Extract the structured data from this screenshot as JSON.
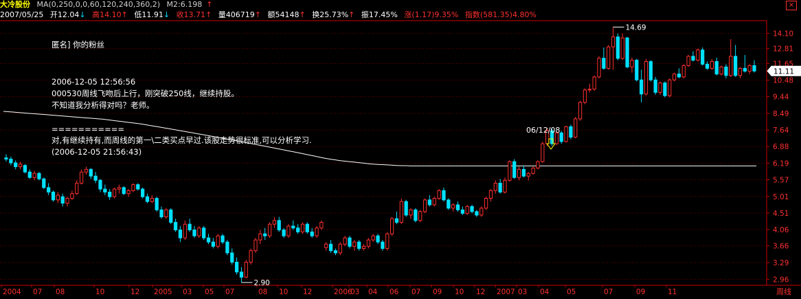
{
  "header": {
    "title": "大冷股份",
    "ma_params": "MA(0,250,0,0,60,120,240,360,2)",
    "m2": "M2:6.198",
    "date": "2007/05/25",
    "open": "开12.04",
    "high": "高14.10",
    "low": "低11.91",
    "close": "收13.71",
    "volume": "量406719",
    "amount": "额54148",
    "turnover": "换25.73%",
    "amplitude": "振17.45%",
    "change": "涨(1.17)9.35%",
    "index": "指数(581.35)4.80%"
  },
  "post": {
    "author": "匿名] 你的粉丝",
    "time": "2006-12-05 12:56:56",
    "line1": "000530周线飞吻后上行，刚突破250线，继续持股。",
    "line2": "不知道我分析得对吗？老师。",
    "separator": "===========",
    "reply1": "对,有继续持有,而周线的第一\\二类买点早过.该股走势很标准,可以分析学习.",
    "reply2": "(2006-12-05 21:56:43)"
  },
  "chart_data": {
    "type": "candlestick",
    "title": "大冷股份",
    "period": "周线",
    "y_ticks": [
      14.1,
      12.81,
      11.65,
      10.48,
      9.44,
      8.49,
      7.64,
      6.88,
      6.19,
      5.57,
      5.01,
      4.51,
      4.06,
      3.66,
      3.29,
      2.96
    ],
    "x_labels": [
      "2004",
      "07",
      "08",
      "10",
      "12",
      "2005",
      "03",
      "05",
      "07",
      "08",
      "10",
      "12",
      "2006",
      "03",
      "04",
      "06",
      "07",
      "09",
      "10",
      "12",
      "2007",
      "03",
      "04",
      "05",
      "07",
      "09",
      "11"
    ],
    "y_range": [
      2.85,
      15.3
    ],
    "y_scale": "log",
    "current_price_label": "11.11",
    "max_label": "14.69",
    "min_label": "2.90",
    "annotation": "06/12/08",
    "colors": {
      "up": "#ff3030",
      "down": "#00e0ff",
      "ma": "#ffffff",
      "grid": "#7a0000",
      "axis": "#cc0000",
      "text": "#ff3030"
    },
    "candles": [
      [
        6.4,
        6.55,
        6.25,
        6.35
      ],
      [
        6.35,
        6.45,
        6.1,
        6.2
      ],
      [
        6.2,
        6.3,
        5.95,
        6.05
      ],
      [
        6.05,
        6.25,
        5.95,
        6.15
      ],
      [
        6.1,
        6.15,
        5.8,
        5.85
      ],
      [
        5.85,
        5.95,
        5.6,
        5.65
      ],
      [
        5.65,
        5.9,
        5.55,
        5.8
      ],
      [
        5.8,
        5.85,
        5.55,
        5.6
      ],
      [
        5.6,
        5.65,
        5.25,
        5.3
      ],
      [
        5.3,
        5.45,
        5.05,
        5.15
      ],
      [
        5.15,
        5.2,
        4.85,
        4.9
      ],
      [
        4.9,
        5.15,
        4.8,
        5.05
      ],
      [
        5.0,
        5.1,
        4.7,
        4.8
      ],
      [
        4.8,
        5.0,
        4.7,
        4.95
      ],
      [
        4.95,
        5.2,
        4.9,
        5.1
      ],
      [
        5.1,
        5.55,
        5.05,
        5.45
      ],
      [
        5.45,
        5.95,
        5.4,
        5.85
      ],
      [
        5.85,
        6.05,
        5.75,
        5.95
      ],
      [
        5.95,
        6.0,
        5.6,
        5.7
      ],
      [
        5.7,
        5.85,
        5.45,
        5.55
      ],
      [
        5.55,
        5.6,
        5.15,
        5.25
      ],
      [
        5.25,
        5.4,
        5.05,
        5.15
      ],
      [
        5.15,
        5.25,
        4.9,
        5.0
      ],
      [
        5.0,
        5.3,
        4.95,
        5.25
      ],
      [
        5.25,
        5.4,
        5.1,
        5.3
      ],
      [
        5.3,
        5.35,
        5.05,
        5.1
      ],
      [
        5.1,
        5.25,
        5.0,
        5.2
      ],
      [
        5.2,
        5.45,
        5.15,
        5.4
      ],
      [
        5.4,
        5.45,
        5.2,
        5.25
      ],
      [
        5.25,
        5.3,
        4.95,
        5.0
      ],
      [
        5.0,
        5.1,
        4.8,
        4.85
      ],
      [
        4.85,
        5.05,
        4.8,
        4.95
      ],
      [
        4.95,
        5.0,
        4.55,
        4.6
      ],
      [
        4.6,
        4.7,
        4.35,
        4.4
      ],
      [
        4.4,
        4.65,
        4.35,
        4.6
      ],
      [
        4.6,
        4.65,
        4.2,
        4.25
      ],
      [
        4.25,
        4.35,
        4.0,
        4.05
      ],
      [
        4.05,
        4.15,
        3.75,
        3.85
      ],
      [
        3.85,
        4.3,
        3.8,
        4.2
      ],
      [
        4.2,
        4.35,
        4.0,
        4.05
      ],
      [
        4.05,
        4.15,
        3.85,
        3.9
      ],
      [
        3.9,
        4.15,
        3.85,
        4.1
      ],
      [
        4.1,
        4.15,
        3.8,
        3.85
      ],
      [
        3.85,
        3.95,
        3.7,
        3.75
      ],
      [
        3.75,
        3.85,
        3.6,
        3.65
      ],
      [
        3.65,
        3.95,
        3.6,
        3.9
      ],
      [
        3.9,
        3.95,
        3.7,
        3.75
      ],
      [
        3.75,
        3.8,
        3.45,
        3.5
      ],
      [
        3.5,
        3.6,
        3.25,
        3.3
      ],
      [
        3.3,
        3.4,
        3.05,
        3.1
      ],
      [
        3.1,
        3.2,
        2.9,
        3.0
      ],
      [
        3.0,
        3.35,
        2.98,
        3.3
      ],
      [
        3.3,
        3.6,
        3.25,
        3.55
      ],
      [
        3.55,
        3.85,
        3.5,
        3.8
      ],
      [
        3.8,
        4.05,
        3.7,
        3.95
      ],
      [
        3.95,
        4.1,
        3.8,
        3.9
      ],
      [
        3.9,
        4.25,
        3.85,
        4.2
      ],
      [
        4.2,
        4.4,
        4.1,
        4.3
      ],
      [
        4.3,
        4.4,
        4.0,
        4.05
      ],
      [
        4.05,
        4.1,
        3.85,
        3.9
      ],
      [
        3.9,
        4.2,
        3.85,
        4.15
      ],
      [
        4.15,
        4.3,
        4.05,
        4.1
      ],
      [
        4.1,
        4.2,
        3.95,
        4.0
      ],
      [
        4.0,
        4.25,
        3.95,
        4.2
      ],
      [
        4.2,
        4.25,
        3.95,
        4.0
      ],
      [
        4.0,
        4.1,
        3.85,
        3.9
      ],
      [
        3.9,
        4.15,
        3.85,
        4.1
      ],
      [
        4.1,
        4.3,
        4.05,
        4.25
      ],
      [
        3.62,
        3.75,
        3.55,
        3.7
      ],
      [
        3.7,
        3.8,
        3.5,
        3.55
      ],
      [
        3.55,
        3.6,
        3.45,
        3.5
      ],
      [
        3.5,
        3.75,
        3.45,
        3.7
      ],
      [
        3.7,
        3.9,
        3.65,
        3.85
      ],
      [
        3.85,
        3.9,
        3.6,
        3.65
      ],
      [
        3.65,
        3.8,
        3.55,
        3.75
      ],
      [
        3.75,
        3.8,
        3.55,
        3.6
      ],
      [
        3.6,
        3.7,
        3.55,
        3.65
      ],
      [
        3.65,
        3.85,
        3.6,
        3.8
      ],
      [
        3.8,
        3.95,
        3.75,
        3.9
      ],
      [
        3.9,
        3.95,
        3.7,
        3.75
      ],
      [
        3.75,
        3.8,
        3.55,
        3.6
      ],
      [
        3.6,
        4.0,
        3.55,
        3.95
      ],
      [
        3.95,
        4.4,
        3.9,
        4.35
      ],
      [
        4.35,
        4.55,
        4.2,
        4.25
      ],
      [
        4.25,
        4.95,
        4.2,
        4.85
      ],
      [
        4.85,
        4.9,
        4.4,
        4.45
      ],
      [
        4.45,
        4.65,
        4.35,
        4.6
      ],
      [
        4.6,
        4.65,
        4.25,
        4.3
      ],
      [
        4.3,
        4.6,
        4.25,
        4.55
      ],
      [
        4.55,
        4.95,
        4.5,
        4.9
      ],
      [
        4.9,
        5.05,
        4.7,
        4.75
      ],
      [
        4.75,
        5.0,
        4.7,
        4.95
      ],
      [
        4.95,
        5.25,
        4.9,
        5.2
      ],
      [
        5.2,
        5.3,
        4.85,
        4.9
      ],
      [
        4.9,
        4.95,
        4.6,
        4.65
      ],
      [
        4.65,
        4.8,
        4.55,
        4.75
      ],
      [
        4.75,
        4.85,
        4.55,
        4.6
      ],
      [
        4.6,
        4.7,
        4.45,
        4.5
      ],
      [
        4.5,
        4.75,
        4.45,
        4.7
      ],
      [
        4.7,
        4.75,
        4.5,
        4.55
      ],
      [
        4.55,
        4.6,
        4.4,
        4.45
      ],
      [
        4.45,
        4.7,
        4.4,
        4.65
      ],
      [
        4.65,
        5.0,
        4.6,
        4.95
      ],
      [
        4.95,
        5.25,
        4.85,
        5.2
      ],
      [
        5.2,
        5.55,
        5.1,
        5.45
      ],
      [
        5.45,
        5.6,
        5.1,
        5.15
      ],
      [
        5.15,
        5.65,
        5.1,
        5.55
      ],
      [
        5.55,
        6.3,
        5.5,
        6.25
      ],
      [
        6.25,
        6.35,
        5.6,
        5.65
      ],
      [
        5.65,
        6.05,
        5.55,
        5.95
      ],
      [
        5.95,
        6.1,
        5.65,
        5.7
      ],
      [
        5.7,
        5.85,
        5.55,
        5.8
      ],
      [
        5.8,
        6.05,
        5.75,
        6.0
      ],
      [
        6.0,
        6.3,
        5.95,
        6.25
      ],
      [
        6.25,
        7.1,
        6.2,
        7.0
      ],
      [
        7.0,
        7.75,
        6.9,
        7.6
      ],
      [
        7.6,
        7.7,
        6.9,
        7.0
      ],
      [
        7.0,
        7.55,
        6.95,
        7.5
      ],
      [
        7.5,
        7.6,
        7.0,
        7.1
      ],
      [
        7.1,
        7.85,
        7.05,
        7.8
      ],
      [
        7.8,
        7.9,
        7.2,
        7.3
      ],
      [
        7.3,
        8.3,
        7.25,
        8.2
      ],
      [
        8.2,
        9.2,
        8.1,
        9.1
      ],
      [
        9.1,
        9.95,
        9.0,
        9.85
      ],
      [
        9.85,
        10.25,
        9.7,
        9.9
      ],
      [
        9.9,
        10.8,
        9.8,
        10.7
      ],
      [
        10.7,
        12.2,
        10.6,
        12.05
      ],
      [
        12.05,
        12.9,
        11.2,
        11.3
      ],
      [
        11.3,
        13.1,
        11.2,
        12.95
      ],
      [
        12.95,
        14.69,
        11.2,
        13.8
      ],
      [
        13.8,
        14.1,
        11.9,
        12.04
      ],
      [
        12.04,
        14.1,
        11.91,
        13.71
      ],
      [
        13.71,
        13.8,
        11.3,
        11.4
      ],
      [
        11.4,
        12.1,
        11.0,
        11.9
      ],
      [
        11.9,
        12.0,
        10.4,
        10.5
      ],
      [
        10.5,
        11.2,
        9.1,
        9.6
      ],
      [
        9.6,
        12.0,
        9.5,
        11.8
      ],
      [
        11.8,
        11.9,
        10.4,
        10.5
      ],
      [
        10.5,
        10.7,
        9.55,
        9.7
      ],
      [
        9.7,
        10.4,
        9.55,
        10.3
      ],
      [
        10.3,
        10.4,
        9.4,
        9.5
      ],
      [
        9.5,
        10.6,
        9.4,
        10.5
      ],
      [
        10.5,
        11.0,
        10.4,
        10.9
      ],
      [
        10.9,
        11.3,
        10.6,
        10.7
      ],
      [
        10.7,
        11.6,
        10.6,
        11.5
      ],
      [
        11.5,
        12.3,
        11.4,
        12.2
      ],
      [
        12.2,
        12.6,
        11.8,
        11.9
      ],
      [
        11.9,
        12.8,
        11.8,
        12.7
      ],
      [
        12.7,
        12.9,
        11.5,
        11.6
      ],
      [
        11.6,
        11.8,
        11.2,
        11.3
      ],
      [
        11.3,
        12.0,
        11.2,
        11.8
      ],
      [
        11.8,
        12.1,
        10.8,
        10.9
      ],
      [
        10.9,
        11.5,
        10.8,
        11.4
      ],
      [
        11.4,
        11.6,
        10.6,
        10.8
      ],
      [
        10.8,
        13.6,
        10.7,
        12.2
      ],
      [
        12.2,
        13.1,
        10.7,
        10.8
      ],
      [
        10.8,
        11.4,
        10.6,
        11.3
      ],
      [
        11.3,
        12.3,
        11.0,
        11.1
      ],
      [
        11.1,
        11.6,
        10.9,
        11.5
      ],
      [
        11.5,
        11.9,
        11.0,
        11.11
      ]
    ],
    "ma250": [
      8.6,
      8.58,
      8.56,
      8.54,
      8.52,
      8.5,
      8.48,
      8.46,
      8.44,
      8.42,
      8.4,
      8.38,
      8.36,
      8.34,
      8.32,
      8.3,
      8.28,
      8.26,
      8.24,
      8.22,
      8.2,
      8.18,
      8.15,
      8.12,
      8.09,
      8.06,
      8.03,
      8.0,
      7.97,
      7.94,
      7.9,
      7.86,
      7.82,
      7.78,
      7.74,
      7.7,
      7.66,
      7.62,
      7.58,
      7.54,
      7.5,
      7.46,
      7.42,
      7.38,
      7.34,
      7.3,
      7.26,
      7.22,
      7.18,
      7.14,
      7.1,
      7.06,
      7.02,
      6.98,
      6.94,
      6.9,
      6.86,
      6.82,
      6.78,
      6.74,
      6.7,
      6.66,
      6.62,
      6.58,
      6.54,
      6.5,
      6.46,
      6.42,
      6.38,
      6.35,
      6.32,
      6.29,
      6.27,
      6.25,
      6.23,
      6.21,
      6.19,
      6.17,
      6.15,
      6.14,
      6.13,
      6.12,
      6.11,
      6.1,
      6.09,
      6.09,
      6.08,
      6.08,
      6.08,
      6.08,
      6.08,
      6.08,
      6.08,
      6.08,
      6.08,
      6.08,
      6.08,
      6.08,
      6.08,
      6.08,
      6.08,
      6.08,
      6.08,
      6.08,
      6.08,
      6.08,
      6.08,
      6.08,
      6.08,
      6.08,
      6.08,
      6.08,
      6.08,
      6.08,
      6.08,
      6.08,
      6.08,
      6.08,
      6.08,
      6.08,
      6.08,
      6.08,
      6.08,
      6.08,
      6.08,
      6.08,
      6.08,
      6.08,
      6.08,
      6.08,
      6.08,
      6.08,
      6.08,
      6.08,
      6.08,
      6.08,
      6.08,
      6.08,
      6.08,
      6.08,
      6.08,
      6.08,
      6.08,
      6.08,
      6.08,
      6.08,
      6.08,
      6.08,
      6.08,
      6.08,
      6.08,
      6.08,
      6.08,
      6.08,
      6.08,
      6.08,
      6.08,
      6.08,
      6.08,
      6.08
    ]
  }
}
